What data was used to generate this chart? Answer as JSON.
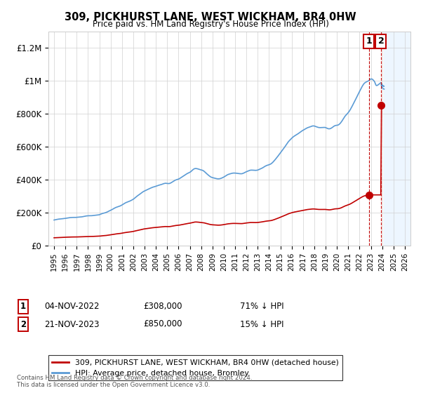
{
  "title": "309, PICKHURST LANE, WEST WICKHAM, BR4 0HW",
  "subtitle": "Price paid vs. HM Land Registry's House Price Index (HPI)",
  "legend_line1": "309, PICKHURST LANE, WEST WICKHAM, BR4 0HW (detached house)",
  "legend_line2": "HPI: Average price, detached house, Bromley",
  "sale1_date_num": 2022.84,
  "sale1_price": 308000,
  "sale2_date_num": 2023.89,
  "sale2_price": 850000,
  "sale1_row": "04-NOV-2022",
  "sale1_price_str": "£308,000",
  "sale1_hpi": "71% ↓ HPI",
  "sale2_row": "21-NOV-2023",
  "sale2_price_str": "£850,000",
  "sale2_hpi": "15% ↓ HPI",
  "footer": "Contains HM Land Registry data © Crown copyright and database right 2024.\nThis data is licensed under the Open Government Licence v3.0.",
  "hpi_color": "#5b9bd5",
  "price_color": "#c00000",
  "background_color": "#ffffff",
  "grid_color": "#d0d0d0",
  "future_fill_color": "#ddeeff",
  "ylim": [
    0,
    1300000
  ],
  "yticks": [
    0,
    200000,
    400000,
    600000,
    800000,
    1000000,
    1200000
  ],
  "ylabels": [
    "£0",
    "£200K",
    "£400K",
    "£600K",
    "£800K",
    "£1M",
    "£1.2M"
  ],
  "xlim_start": 1994.5,
  "xlim_end": 2026.5,
  "future_start": 2024.17
}
